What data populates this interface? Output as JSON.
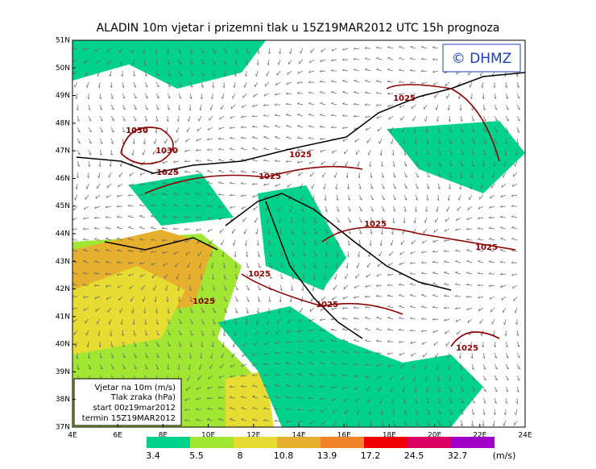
{
  "title": "ALADIN 10m vjetar i prizemni tlak u 15Z19MAR2012 UTC 15h prognoza",
  "logo": "© DHMZ",
  "lat_labels": [
    "51N",
    "50N",
    "49N",
    "48N",
    "47N",
    "46N",
    "45N",
    "44N",
    "43N",
    "42N",
    "41N",
    "40N",
    "39N",
    "38N",
    "37N"
  ],
  "lon_labels": [
    "4E",
    "6E",
    "8E",
    "10E",
    "12E",
    "14E",
    "16E",
    "18E",
    "20E",
    "22E",
    "24E"
  ],
  "isobars": [
    "1030",
    "1030",
    "1025",
    "1025",
    "1025",
    "1025",
    "1025",
    "1025",
    "1025",
    "1025",
    "1025",
    "1025"
  ],
  "info": [
    "Vjetar na 10m (m/s)",
    "Tlak zraka (hPa)",
    "start 00z19mar2012",
    "termin 15Z19MAR2012"
  ],
  "legend": {
    "values": [
      3.4,
      5.5,
      8,
      10.8,
      13.9,
      17.2,
      24.5,
      32.7
    ],
    "colors": [
      "#00d28c",
      "#a0e632",
      "#e6dc32",
      "#e6af2d",
      "#f08228",
      "#f00000",
      "#dc0064",
      "#a000c8"
    ],
    "unit": "(m/s)"
  }
}
